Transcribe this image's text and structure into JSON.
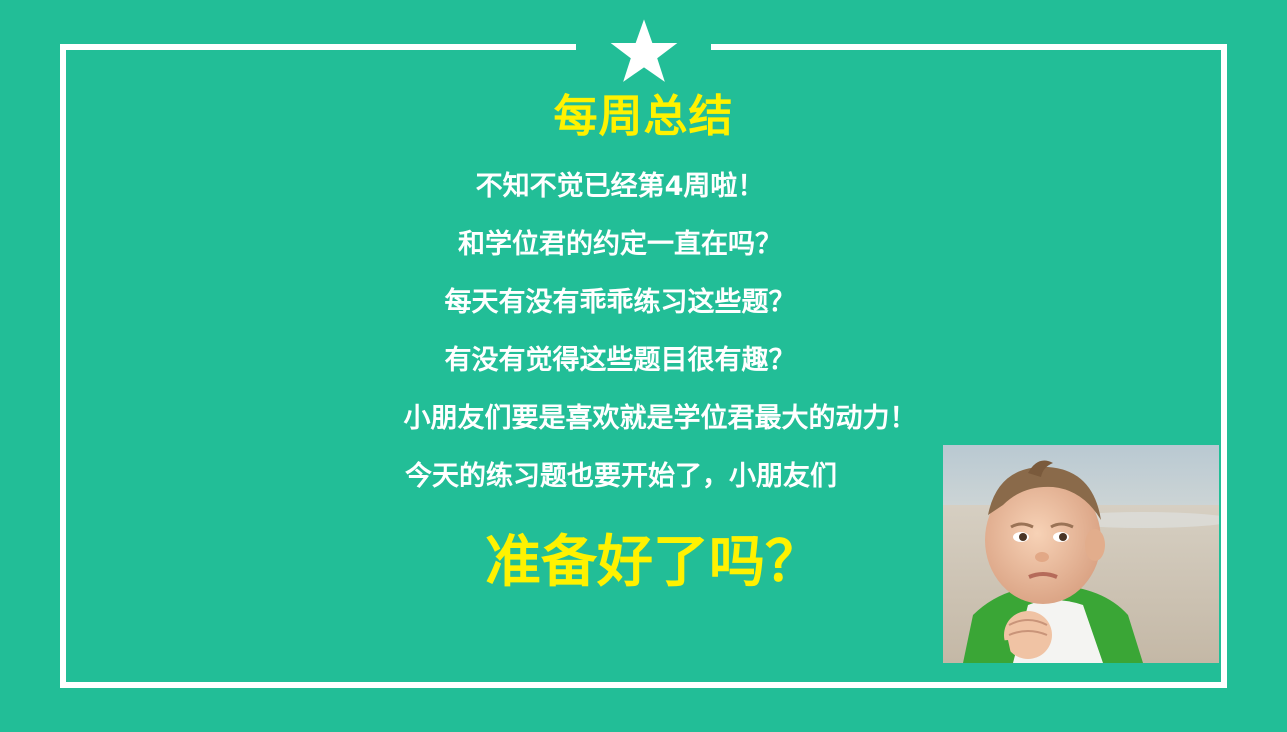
{
  "colors": {
    "background": "#22BE97",
    "frame": "#FFFFFF",
    "title": "#FFF200",
    "text": "#FFFFFF",
    "cta": "#FFF200"
  },
  "icons": {
    "top": "star-icon",
    "photo": "baby-fist-photo"
  },
  "title": "每周总结",
  "lines": [
    "不知不觉已经第4周啦！",
    "和学位君的约定一直在吗？",
    "每天有没有乖乖练习这些题？",
    "有没有觉得这些题目很有趣？",
    "小朋友们要是喜欢就是学位君最大的动力！",
    "今天的练习题也要开始了，小朋友们"
  ],
  "cta": "准备好了吗？"
}
